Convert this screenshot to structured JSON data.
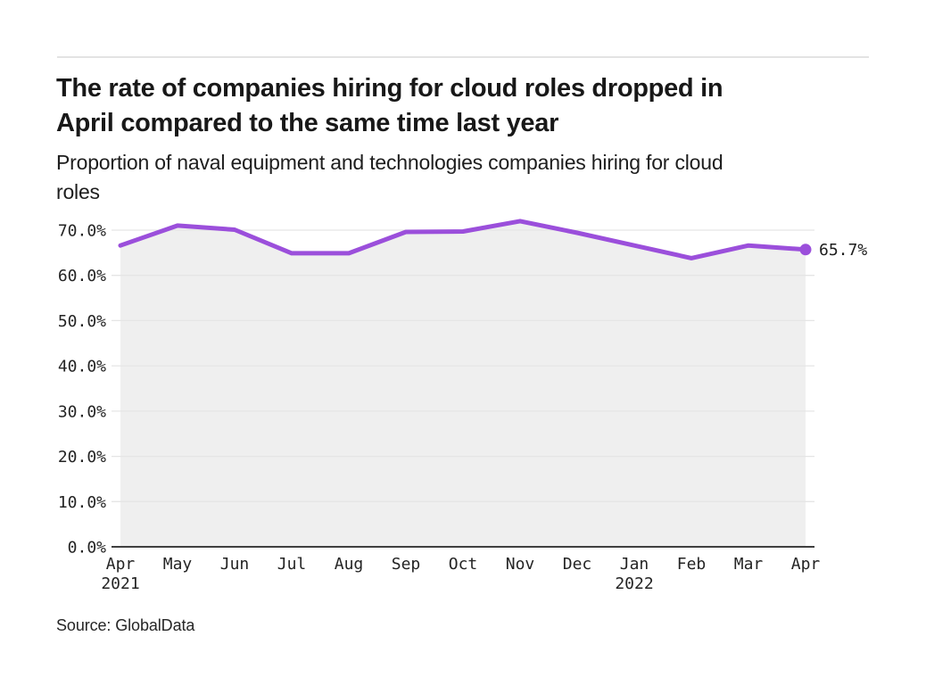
{
  "header": {
    "title_lines": [
      "The rate of companies hiring for cloud roles dropped in",
      "April compared to the same time last year"
    ],
    "subtitle_lines": [
      "Proportion of naval equipment and technologies companies hiring for cloud",
      "roles"
    ]
  },
  "footer": {
    "source": "Source: GlobalData"
  },
  "chart_data": {
    "type": "area",
    "title": "The rate of companies hiring for cloud roles dropped in April compared to the same time last year",
    "subtitle": "Proportion of naval equipment and technologies companies hiring for cloud roles",
    "categories": [
      "Apr 2021",
      "May",
      "Jun",
      "Jul",
      "Aug",
      "Sep",
      "Oct",
      "Nov",
      "Dec",
      "Jan 2022",
      "Feb",
      "Mar",
      "Apr 2022"
    ],
    "values": [
      66.6,
      71.0,
      70.1,
      64.9,
      64.9,
      69.6,
      69.7,
      72.0,
      69.4,
      66.6,
      63.8,
      66.6,
      65.7
    ],
    "x_ticks": [
      {
        "label": "Apr",
        "sub": "2021"
      },
      {
        "label": "May"
      },
      {
        "label": "Jun"
      },
      {
        "label": "Jul"
      },
      {
        "label": "Aug"
      },
      {
        "label": "Sep"
      },
      {
        "label": "Oct"
      },
      {
        "label": "Nov"
      },
      {
        "label": "Dec"
      },
      {
        "label": "Jan",
        "sub": "2022"
      },
      {
        "label": "Feb"
      },
      {
        "label": "Mar"
      },
      {
        "label": "Apr"
      }
    ],
    "y_ticks": [
      "0.0%",
      "10.0%",
      "20.0%",
      "30.0%",
      "40.0%",
      "50.0%",
      "60.0%",
      "70.0%"
    ],
    "y_tick_values": [
      0,
      10,
      20,
      30,
      40,
      50,
      60,
      70
    ],
    "ylim": [
      0,
      70
    ],
    "xlabel": "",
    "ylabel": "",
    "end_label": "65.7%",
    "grid": true,
    "legend": false,
    "colors": {
      "line": "#9b4fdb",
      "area": "#efefef",
      "grid": "#e5e5e5",
      "axis": "#3f3f3f",
      "text": "#242424"
    }
  }
}
